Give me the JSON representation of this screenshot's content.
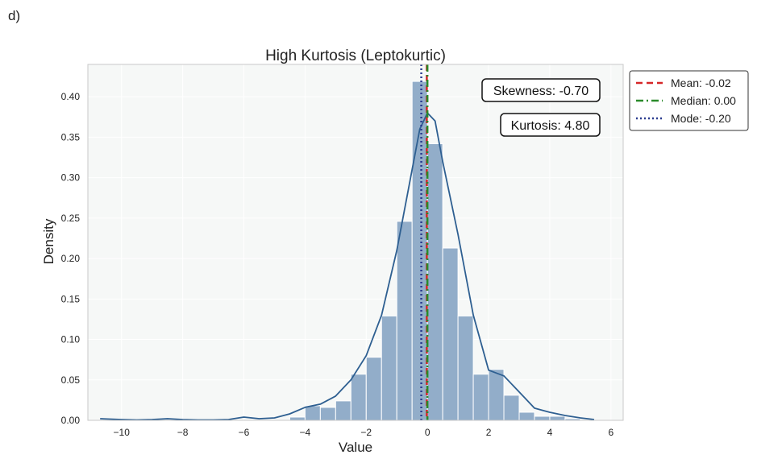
{
  "panel_label": "d)",
  "colors": {
    "background": "#f6f8f7",
    "bar_fill": "#92adc9",
    "kde_line": "#2e5f91",
    "mean": "#d62728",
    "median": "#2a8a2a",
    "mode": "#2b3c8f"
  },
  "chart_data": {
    "type": "bar",
    "title": "High Kurtosis (Leptokurtic)",
    "xlabel": "Value",
    "ylabel": "Density",
    "xlim": [
      -11.1,
      6.4
    ],
    "ylim": [
      0,
      0.44
    ],
    "xticks": [
      -10,
      -8,
      -6,
      -4,
      -2,
      0,
      2,
      4,
      6
    ],
    "yticks": [
      0.0,
      0.05,
      0.1,
      0.15,
      0.2,
      0.25,
      0.3,
      0.35,
      0.4
    ],
    "ytick_labels": [
      "0.00",
      "0.05",
      "0.10",
      "0.15",
      "0.20",
      "0.25",
      "0.30",
      "0.35",
      "0.40"
    ],
    "grid": true,
    "legend_position": "outside-right-top",
    "bin_edges": [
      -4.5,
      -4.0,
      -3.5,
      -3.0,
      -2.5,
      -2.0,
      -1.5,
      -1.0,
      -0.5,
      0.0,
      0.5,
      1.0,
      1.5,
      2.0,
      2.5,
      3.0,
      3.5,
      4.0,
      4.5,
      5.0
    ],
    "histogram": [
      0.004,
      0.018,
      0.016,
      0.024,
      0.057,
      0.078,
      0.129,
      0.246,
      0.419,
      0.342,
      0.213,
      0.129,
      0.057,
      0.063,
      0.031,
      0.01,
      0.005,
      0.005,
      0.002
    ],
    "kde": {
      "x": [
        -10.7,
        -10.0,
        -9.5,
        -9.0,
        -8.5,
        -8.0,
        -7.5,
        -7.0,
        -6.5,
        -6.0,
        -5.5,
        -5.0,
        -4.5,
        -4.0,
        -3.5,
        -3.0,
        -2.5,
        -2.0,
        -1.5,
        -1.0,
        -0.5,
        -0.25,
        0.0,
        0.25,
        0.5,
        1.0,
        1.5,
        2.0,
        2.5,
        3.0,
        3.5,
        4.0,
        4.5,
        5.0,
        5.45
      ],
      "y": [
        0.002,
        0.001,
        0.0005,
        0.001,
        0.002,
        0.001,
        0.0005,
        0.0005,
        0.001,
        0.004,
        0.002,
        0.003,
        0.008,
        0.016,
        0.02,
        0.03,
        0.05,
        0.08,
        0.13,
        0.21,
        0.31,
        0.36,
        0.38,
        0.37,
        0.32,
        0.23,
        0.13,
        0.062,
        0.055,
        0.035,
        0.015,
        0.01,
        0.006,
        0.003,
        0.001
      ]
    },
    "vlines": [
      {
        "name": "Mean: -0.02",
        "x": -0.02,
        "style": "dashed",
        "color": "#d62728"
      },
      {
        "name": "Median: 0.00",
        "x": 0.0,
        "style": "dashdot",
        "color": "#2a8a2a"
      },
      {
        "name": "Mode: -0.20",
        "x": -0.2,
        "style": "dotted",
        "color": "#2b3c8f"
      }
    ],
    "annotations": [
      {
        "text": "Skewness: -0.70",
        "position": "top-right"
      },
      {
        "text": "Kurtosis: 4.80",
        "position": "top-right-below"
      }
    ]
  }
}
